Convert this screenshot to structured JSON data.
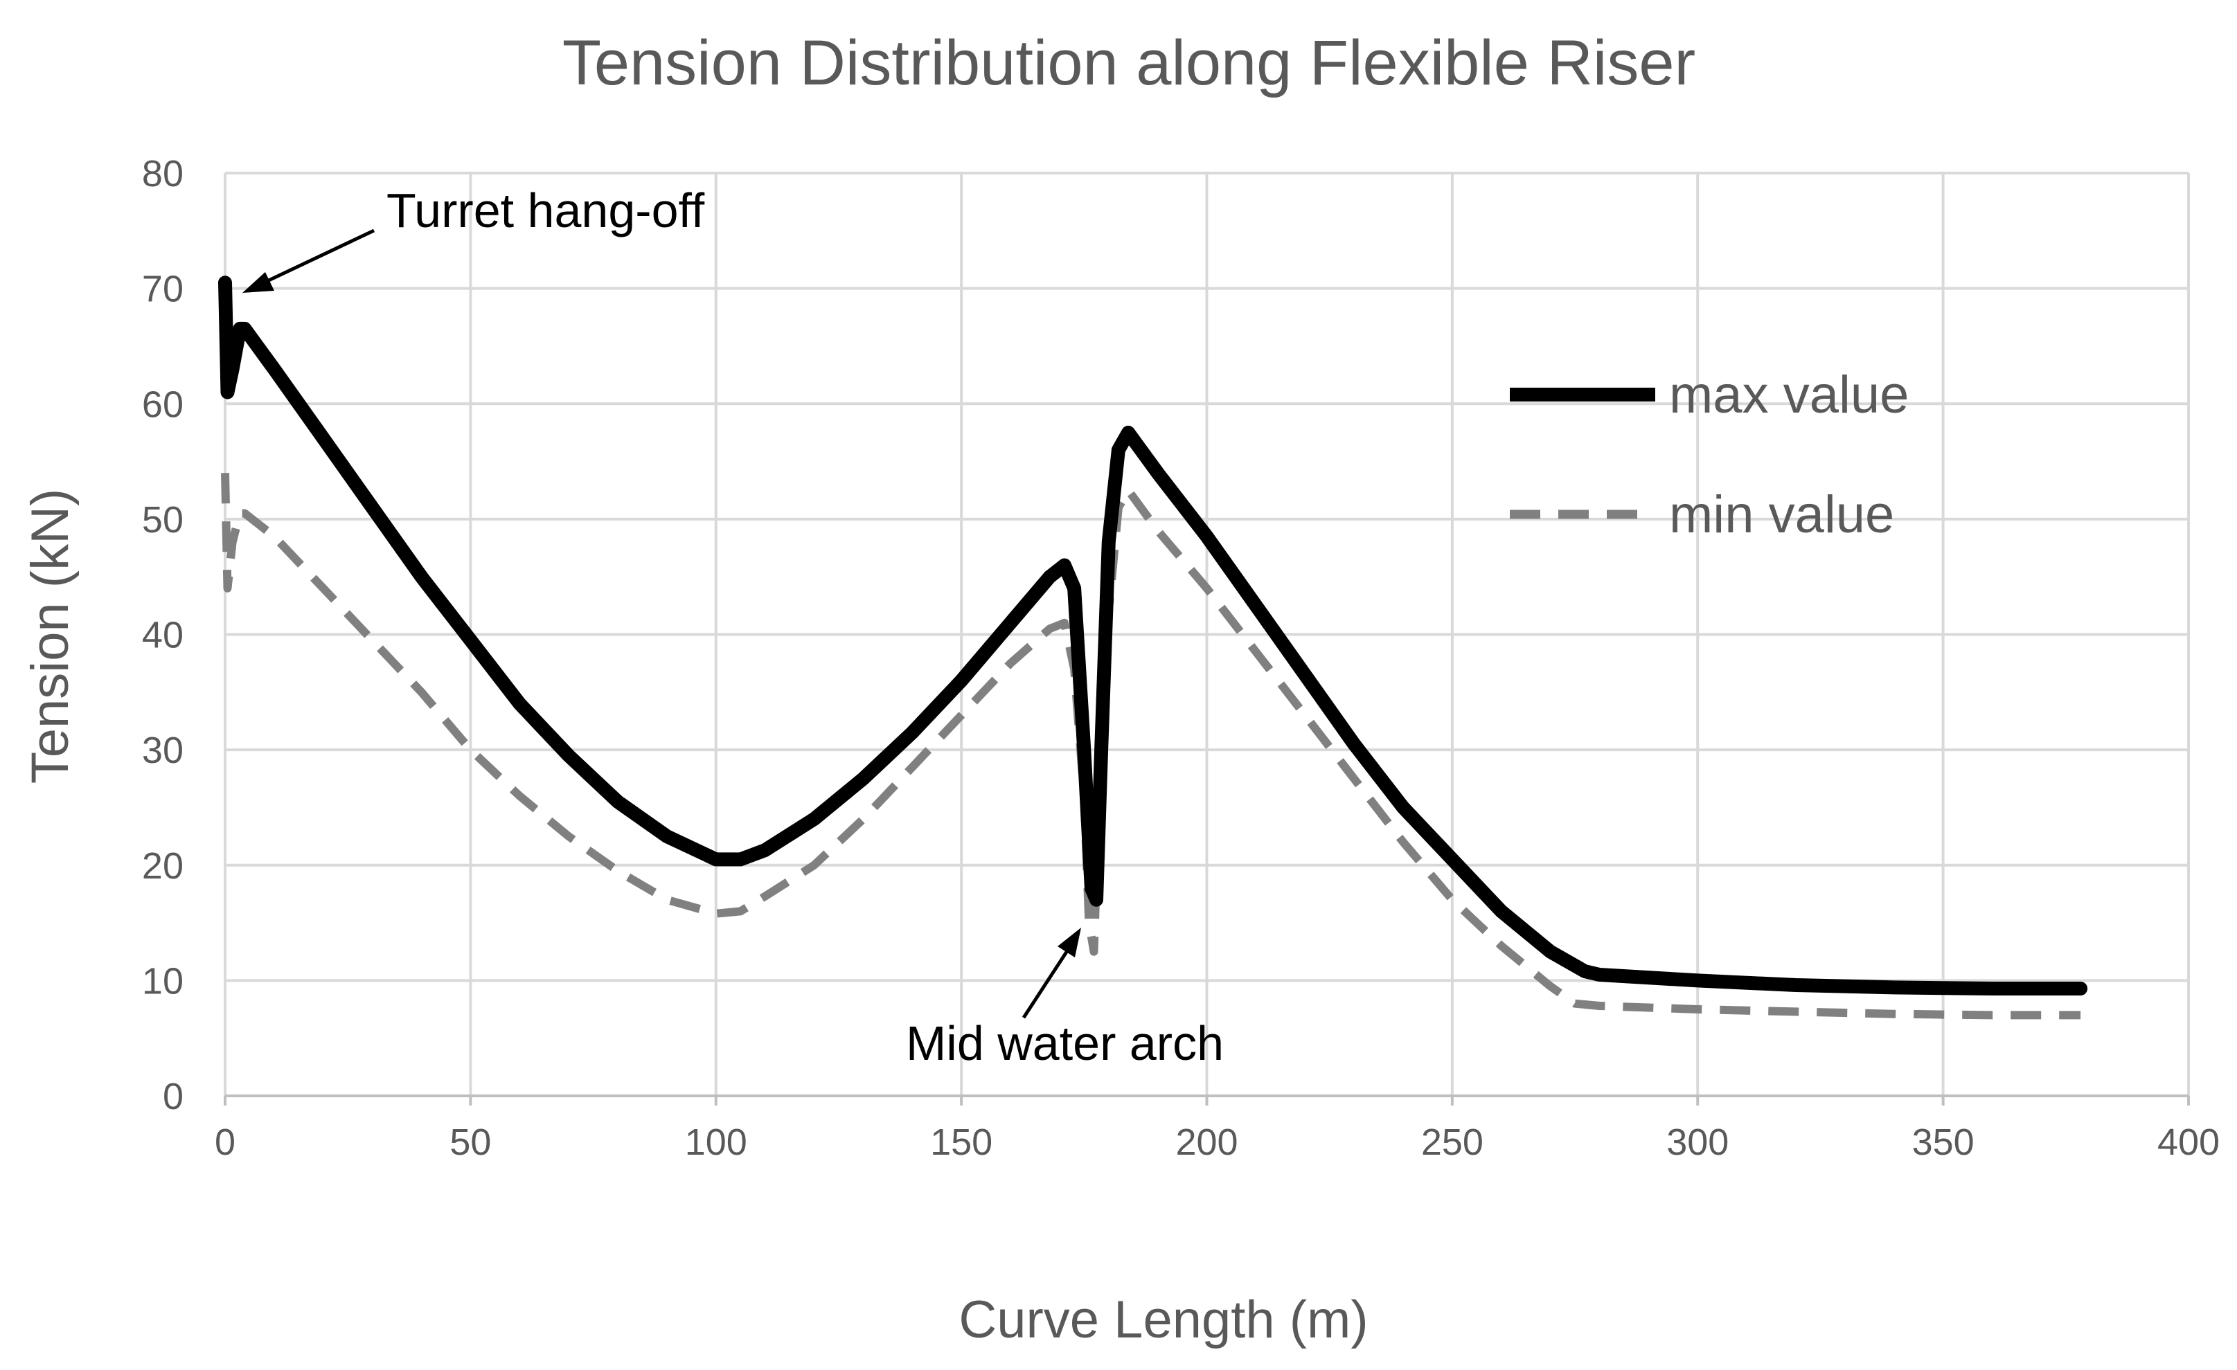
{
  "chart_data": {
    "type": "line",
    "title": "Tension Distribution along Flexible Riser",
    "xlabel": "Curve Length (m)",
    "ylabel": "Tension (kN)",
    "xlim": [
      0,
      400
    ],
    "ylim": [
      0,
      80
    ],
    "x_ticks": [
      "0",
      "50",
      "100",
      "150",
      "200",
      "250",
      "300",
      "350",
      "400"
    ],
    "y_ticks": [
      "0",
      "10",
      "20",
      "30",
      "40",
      "50",
      "60",
      "70",
      "80"
    ],
    "grid": true,
    "legend_position": "right",
    "series": [
      {
        "name": "max value",
        "color": "#000000",
        "style": "solid",
        "points": [
          [
            0,
            70.5
          ],
          [
            0.5,
            61
          ],
          [
            1.5,
            63
          ],
          [
            3,
            66.5
          ],
          [
            4,
            66.5
          ],
          [
            10,
            63
          ],
          [
            20,
            57
          ],
          [
            30,
            51
          ],
          [
            40,
            45
          ],
          [
            50,
            39.5
          ],
          [
            60,
            34
          ],
          [
            70,
            29.5
          ],
          [
            80,
            25.5
          ],
          [
            90,
            22.5
          ],
          [
            100,
            20.5
          ],
          [
            105,
            20.5
          ],
          [
            110,
            21.3
          ],
          [
            120,
            24
          ],
          [
            130,
            27.5
          ],
          [
            140,
            31.5
          ],
          [
            150,
            36
          ],
          [
            160,
            41
          ],
          [
            168,
            45
          ],
          [
            171,
            46
          ],
          [
            173,
            44
          ],
          [
            175,
            30
          ],
          [
            176.5,
            18
          ],
          [
            177.5,
            17
          ],
          [
            178.5,
            30
          ],
          [
            180,
            48
          ],
          [
            182,
            56
          ],
          [
            184,
            57.5
          ],
          [
            190,
            54
          ],
          [
            200,
            48.5
          ],
          [
            210,
            42.5
          ],
          [
            220,
            36.5
          ],
          [
            230,
            30.5
          ],
          [
            240,
            25
          ],
          [
            250,
            20.5
          ],
          [
            260,
            16
          ],
          [
            270,
            12.5
          ],
          [
            277,
            10.8
          ],
          [
            280,
            10.5
          ],
          [
            300,
            10
          ],
          [
            320,
            9.6
          ],
          [
            340,
            9.4
          ],
          [
            360,
            9.3
          ],
          [
            378,
            9.3
          ]
        ]
      },
      {
        "name": "min value",
        "color": "#808080",
        "style": "dashed",
        "points": [
          [
            0,
            54
          ],
          [
            0.5,
            44
          ],
          [
            1.5,
            48
          ],
          [
            3,
            50.5
          ],
          [
            4,
            50.5
          ],
          [
            10,
            48.5
          ],
          [
            20,
            44
          ],
          [
            30,
            39.5
          ],
          [
            40,
            35
          ],
          [
            50,
            30
          ],
          [
            60,
            26
          ],
          [
            70,
            22.5
          ],
          [
            80,
            19.5
          ],
          [
            90,
            17
          ],
          [
            100,
            15.8
          ],
          [
            105,
            16
          ],
          [
            110,
            17.3
          ],
          [
            120,
            20
          ],
          [
            130,
            24
          ],
          [
            140,
            28.5
          ],
          [
            150,
            33
          ],
          [
            160,
            37.5
          ],
          [
            168,
            40.5
          ],
          [
            171,
            41
          ],
          [
            173,
            37
          ],
          [
            175,
            26
          ],
          [
            176,
            15
          ],
          [
            177,
            12.5
          ],
          [
            178,
            25
          ],
          [
            180,
            42
          ],
          [
            182,
            51
          ],
          [
            184,
            52.5
          ],
          [
            190,
            49
          ],
          [
            200,
            44
          ],
          [
            210,
            38.5
          ],
          [
            220,
            33
          ],
          [
            230,
            27.5
          ],
          [
            240,
            22
          ],
          [
            250,
            17
          ],
          [
            260,
            13
          ],
          [
            270,
            9.5
          ],
          [
            275,
            8
          ],
          [
            280,
            7.8
          ],
          [
            300,
            7.5
          ],
          [
            320,
            7.3
          ],
          [
            340,
            7.1
          ],
          [
            360,
            7
          ],
          [
            378,
            7
          ]
        ]
      }
    ],
    "annotations": [
      {
        "text": "Turret hang-off",
        "x": 3,
        "y": 70
      },
      {
        "text": "Mid water arch",
        "x": 175,
        "y": 15
      }
    ]
  }
}
